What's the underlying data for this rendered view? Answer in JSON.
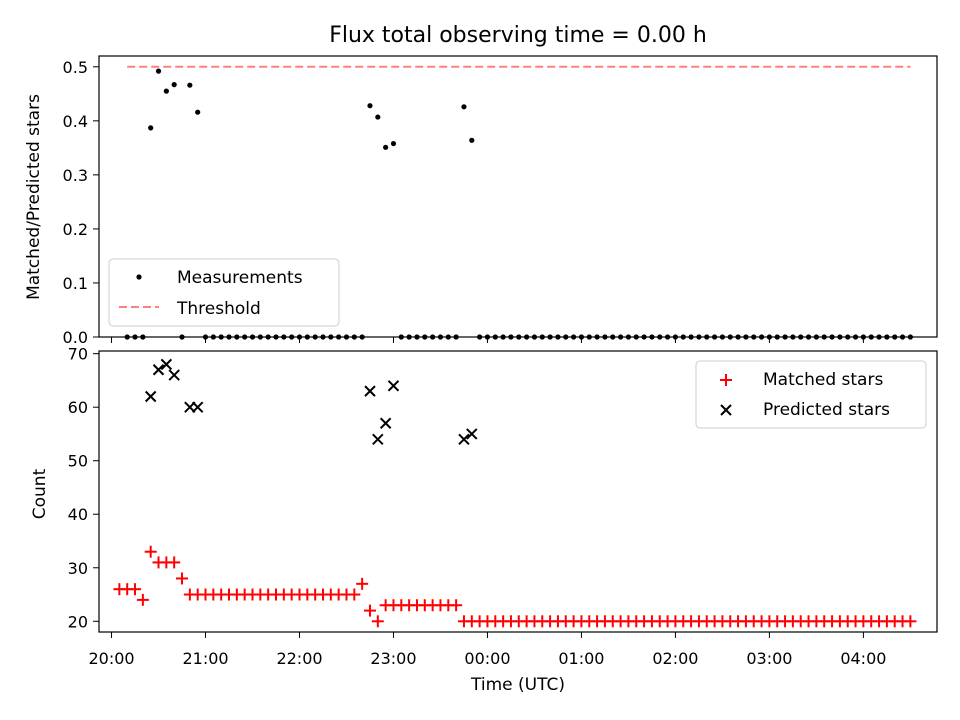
{
  "title": "Flux total observing time = 0.00 h",
  "colors": {
    "threshold": "#ff7f7f",
    "matched": "#ff0000",
    "predicted": "#000000",
    "measurement": "#000000"
  },
  "chart_data": [
    {
      "type": "scatter",
      "ylabel": "Matched/Predicted stars",
      "ylim": [
        0,
        0.52
      ],
      "yticks": [
        "0.0",
        "0.1",
        "0.2",
        "0.3",
        "0.4",
        "0.5"
      ],
      "grid": false,
      "legend_position": "lower-left",
      "legend": [
        "Measurements",
        "Threshold"
      ],
      "threshold": {
        "y": 0.5,
        "x_start": "20:10",
        "x_end": "04:30"
      },
      "series": [
        {
          "name": "Measurements",
          "points": [
            [
              "20:10",
              0
            ],
            [
              "20:15",
              0
            ],
            [
              "20:20",
              0
            ],
            [
              "20:25",
              0.387
            ],
            [
              "20:30",
              0.492
            ],
            [
              "20:35",
              0.455
            ],
            [
              "20:40",
              0.467
            ],
            [
              "20:45",
              0
            ],
            [
              "20:50",
              0.466
            ],
            [
              "20:55",
              0.416
            ],
            [
              "21:00",
              0
            ],
            [
              "21:05",
              0
            ],
            [
              "21:10",
              0
            ],
            [
              "21:15",
              0
            ],
            [
              "21:20",
              0
            ],
            [
              "21:25",
              0
            ],
            [
              "21:30",
              0
            ],
            [
              "21:35",
              0
            ],
            [
              "21:40",
              0
            ],
            [
              "21:45",
              0
            ],
            [
              "21:50",
              0
            ],
            [
              "21:55",
              0
            ],
            [
              "22:00",
              0
            ],
            [
              "22:05",
              0
            ],
            [
              "22:10",
              0
            ],
            [
              "22:15",
              0
            ],
            [
              "22:20",
              0
            ],
            [
              "22:25",
              0
            ],
            [
              "22:30",
              0
            ],
            [
              "22:35",
              0
            ],
            [
              "22:40",
              0
            ],
            [
              "22:45",
              0.428
            ],
            [
              "22:50",
              0.407
            ],
            [
              "22:55",
              0.351
            ],
            [
              "23:00",
              0.358
            ],
            [
              "23:05",
              0
            ],
            [
              "23:10",
              0
            ],
            [
              "23:15",
              0
            ],
            [
              "23:20",
              0
            ],
            [
              "23:25",
              0
            ],
            [
              "23:30",
              0
            ],
            [
              "23:35",
              0
            ],
            [
              "23:40",
              0
            ],
            [
              "23:45",
              0.426
            ],
            [
              "23:50",
              0.364
            ],
            [
              "23:55",
              0
            ],
            [
              "00:00",
              0
            ],
            [
              "00:05",
              0
            ],
            [
              "00:10",
              0
            ],
            [
              "00:15",
              0
            ],
            [
              "00:20",
              0
            ],
            [
              "00:25",
              0
            ],
            [
              "00:30",
              0
            ],
            [
              "00:35",
              0
            ],
            [
              "00:40",
              0
            ],
            [
              "00:45",
              0
            ],
            [
              "00:50",
              0
            ],
            [
              "00:55",
              0
            ],
            [
              "01:00",
              0
            ],
            [
              "01:05",
              0
            ],
            [
              "01:10",
              0
            ],
            [
              "01:15",
              0
            ],
            [
              "01:20",
              0
            ],
            [
              "01:25",
              0
            ],
            [
              "01:30",
              0
            ],
            [
              "01:35",
              0
            ],
            [
              "01:40",
              0
            ],
            [
              "01:45",
              0
            ],
            [
              "01:50",
              0
            ],
            [
              "01:55",
              0
            ],
            [
              "02:00",
              0
            ],
            [
              "02:05",
              0
            ],
            [
              "02:10",
              0
            ],
            [
              "02:15",
              0
            ],
            [
              "02:20",
              0
            ],
            [
              "02:25",
              0
            ],
            [
              "02:30",
              0
            ],
            [
              "02:35",
              0
            ],
            [
              "02:40",
              0
            ],
            [
              "02:45",
              0
            ],
            [
              "02:50",
              0
            ],
            [
              "02:55",
              0
            ],
            [
              "03:00",
              0
            ],
            [
              "03:05",
              0
            ],
            [
              "03:10",
              0
            ],
            [
              "03:15",
              0
            ],
            [
              "03:20",
              0
            ],
            [
              "03:25",
              0
            ],
            [
              "03:30",
              0
            ],
            [
              "03:35",
              0
            ],
            [
              "03:40",
              0
            ],
            [
              "03:45",
              0
            ],
            [
              "03:50",
              0
            ],
            [
              "03:55",
              0
            ],
            [
              "04:00",
              0
            ],
            [
              "04:05",
              0
            ],
            [
              "04:10",
              0
            ],
            [
              "04:15",
              0
            ],
            [
              "04:20",
              0
            ],
            [
              "04:25",
              0
            ],
            [
              "04:30",
              0
            ]
          ]
        }
      ]
    },
    {
      "type": "scatter",
      "xlabel": "Time (UTC)",
      "ylabel": "Count",
      "ylim": [
        18,
        70.5
      ],
      "yticks": [
        "20",
        "30",
        "40",
        "50",
        "60",
        "70"
      ],
      "xticks": [
        "20:00",
        "21:00",
        "22:00",
        "23:00",
        "00:00",
        "01:00",
        "02:00",
        "03:00",
        "04:00"
      ],
      "xlim": [
        "19:52",
        "04:47"
      ],
      "grid": false,
      "legend_position": "top-right",
      "legend": [
        "Matched stars",
        "Predicted stars"
      ],
      "series": [
        {
          "name": "Matched stars",
          "points": [
            [
              "20:05",
              26
            ],
            [
              "20:10",
              26
            ],
            [
              "20:15",
              26
            ],
            [
              "20:20",
              24
            ],
            [
              "20:25",
              33
            ],
            [
              "20:30",
              31
            ],
            [
              "20:35",
              31
            ],
            [
              "20:40",
              31
            ],
            [
              "20:45",
              28
            ],
            [
              "20:50",
              25
            ],
            [
              "20:55",
              25
            ],
            [
              "21:00",
              25
            ],
            [
              "21:05",
              25
            ],
            [
              "21:10",
              25
            ],
            [
              "21:15",
              25
            ],
            [
              "21:20",
              25
            ],
            [
              "21:25",
              25
            ],
            [
              "21:30",
              25
            ],
            [
              "21:35",
              25
            ],
            [
              "21:40",
              25
            ],
            [
              "21:45",
              25
            ],
            [
              "21:50",
              25
            ],
            [
              "21:55",
              25
            ],
            [
              "22:00",
              25
            ],
            [
              "22:05",
              25
            ],
            [
              "22:10",
              25
            ],
            [
              "22:15",
              25
            ],
            [
              "22:20",
              25
            ],
            [
              "22:25",
              25
            ],
            [
              "22:30",
              25
            ],
            [
              "22:35",
              25
            ],
            [
              "22:40",
              27
            ],
            [
              "22:45",
              22
            ],
            [
              "22:50",
              20
            ],
            [
              "22:55",
              23
            ],
            [
              "23:00",
              23
            ],
            [
              "23:05",
              23
            ],
            [
              "23:10",
              23
            ],
            [
              "23:15",
              23
            ],
            [
              "23:20",
              23
            ],
            [
              "23:25",
              23
            ],
            [
              "23:30",
              23
            ],
            [
              "23:35",
              23
            ],
            [
              "23:40",
              23
            ],
            [
              "23:45",
              20
            ],
            [
              "23:50",
              20
            ],
            [
              "23:55",
              20
            ],
            [
              "00:00",
              20
            ],
            [
              "00:05",
              20
            ],
            [
              "00:10",
              20
            ],
            [
              "00:15",
              20
            ],
            [
              "00:20",
              20
            ],
            [
              "00:25",
              20
            ],
            [
              "00:30",
              20
            ],
            [
              "00:35",
              20
            ],
            [
              "00:40",
              20
            ],
            [
              "00:45",
              20
            ],
            [
              "00:50",
              20
            ],
            [
              "00:55",
              20
            ],
            [
              "01:00",
              20
            ],
            [
              "01:05",
              20
            ],
            [
              "01:10",
              20
            ],
            [
              "01:15",
              20
            ],
            [
              "01:20",
              20
            ],
            [
              "01:25",
              20
            ],
            [
              "01:30",
              20
            ],
            [
              "01:35",
              20
            ],
            [
              "01:40",
              20
            ],
            [
              "01:45",
              20
            ],
            [
              "01:50",
              20
            ],
            [
              "01:55",
              20
            ],
            [
              "02:00",
              20
            ],
            [
              "02:05",
              20
            ],
            [
              "02:10",
              20
            ],
            [
              "02:15",
              20
            ],
            [
              "02:20",
              20
            ],
            [
              "02:25",
              20
            ],
            [
              "02:30",
              20
            ],
            [
              "02:35",
              20
            ],
            [
              "02:40",
              20
            ],
            [
              "02:45",
              20
            ],
            [
              "02:50",
              20
            ],
            [
              "02:55",
              20
            ],
            [
              "03:00",
              20
            ],
            [
              "03:05",
              20
            ],
            [
              "03:10",
              20
            ],
            [
              "03:15",
              20
            ],
            [
              "03:20",
              20
            ],
            [
              "03:25",
              20
            ],
            [
              "03:30",
              20
            ],
            [
              "03:35",
              20
            ],
            [
              "03:40",
              20
            ],
            [
              "03:45",
              20
            ],
            [
              "03:50",
              20
            ],
            [
              "03:55",
              20
            ],
            [
              "04:00",
              20
            ],
            [
              "04:05",
              20
            ],
            [
              "04:10",
              20
            ],
            [
              "04:15",
              20
            ],
            [
              "04:20",
              20
            ],
            [
              "04:25",
              20
            ],
            [
              "04:30",
              20
            ]
          ]
        },
        {
          "name": "Predicted stars",
          "points": [
            [
              "20:25",
              62
            ],
            [
              "20:30",
              67
            ],
            [
              "20:35",
              68
            ],
            [
              "20:40",
              66
            ],
            [
              "20:50",
              60
            ],
            [
              "20:55",
              60
            ],
            [
              "22:45",
              63
            ],
            [
              "22:50",
              54
            ],
            [
              "22:55",
              57
            ],
            [
              "23:00",
              64
            ],
            [
              "23:45",
              54
            ],
            [
              "23:50",
              55
            ]
          ]
        }
      ]
    }
  ]
}
